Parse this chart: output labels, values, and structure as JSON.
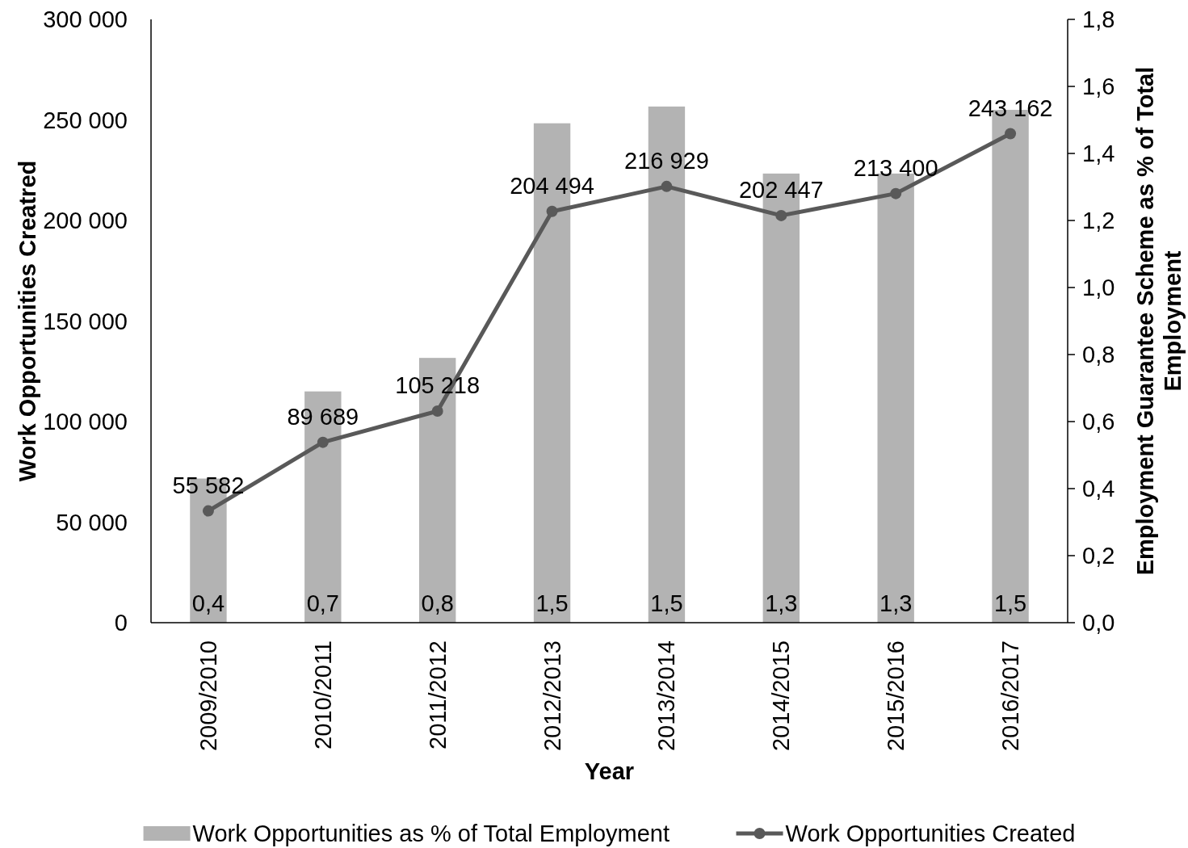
{
  "chart_data": {
    "type": "bar",
    "xlabel": "Year",
    "ylabel": "Work Opportunities Creatred",
    "y2label": "Employment Guarantee Scheme as % of Total Employment",
    "categories": [
      "2009/2010",
      "2010/2011",
      "2011/2012",
      "2012/2013",
      "2013/2014",
      "2014/2015",
      "2015/2016",
      "2016/2017"
    ],
    "series": [
      {
        "name": "Work Opportunities as % of Total Employment",
        "axis": "y2",
        "color": "#b3b3b3",
        "values": [
          0.43,
          0.69,
          0.79,
          1.49,
          1.54,
          1.34,
          1.34,
          1.53
        ],
        "value_labels": [
          "0,4",
          "0,7",
          "0,8",
          "1,5",
          "1,5",
          "1,3",
          "1,3",
          "1,5"
        ]
      },
      {
        "name": "Work Opportunities Created",
        "type": "line",
        "color": "#595959",
        "values": [
          55582,
          89689,
          105218,
          204494,
          216929,
          202447,
          213400,
          243162
        ],
        "value_labels": [
          "55 582",
          "89 689",
          "105 218",
          "204 494",
          "216 929",
          "202 447",
          "213 400",
          "243 162"
        ]
      }
    ],
    "ylim": [
      0,
      300000
    ],
    "yticks": [
      0,
      {
        "value": 50000,
        "label": "50 000"
      },
      {
        "value": 100000,
        "label": "100 000"
      },
      {
        "value": 150000,
        "label": "150 000"
      },
      {
        "value": 200000,
        "label": "200 000"
      },
      {
        "value": 250000,
        "label": "250 000"
      },
      {
        "value": 300000,
        "label": "300 000"
      }
    ],
    "y2lim": [
      0,
      1.8
    ],
    "y2ticks": [
      {
        "value": 0,
        "label": "0,0"
      },
      {
        "value": 0.2,
        "label": "0,2"
      },
      {
        "value": 0.4,
        "label": "0,4"
      },
      {
        "value": 0.6,
        "label": "0,6"
      },
      {
        "value": 0.8,
        "label": "0,8"
      },
      {
        "value": 1.0,
        "label": "1,0"
      },
      {
        "value": 1.2,
        "label": "1,2"
      },
      {
        "value": 1.4,
        "label": "1,4"
      },
      {
        "value": 1.6,
        "label": "1,6"
      },
      {
        "value": 1.8,
        "label": "1,8"
      }
    ],
    "legend": "bottom",
    "marker": "circle"
  }
}
